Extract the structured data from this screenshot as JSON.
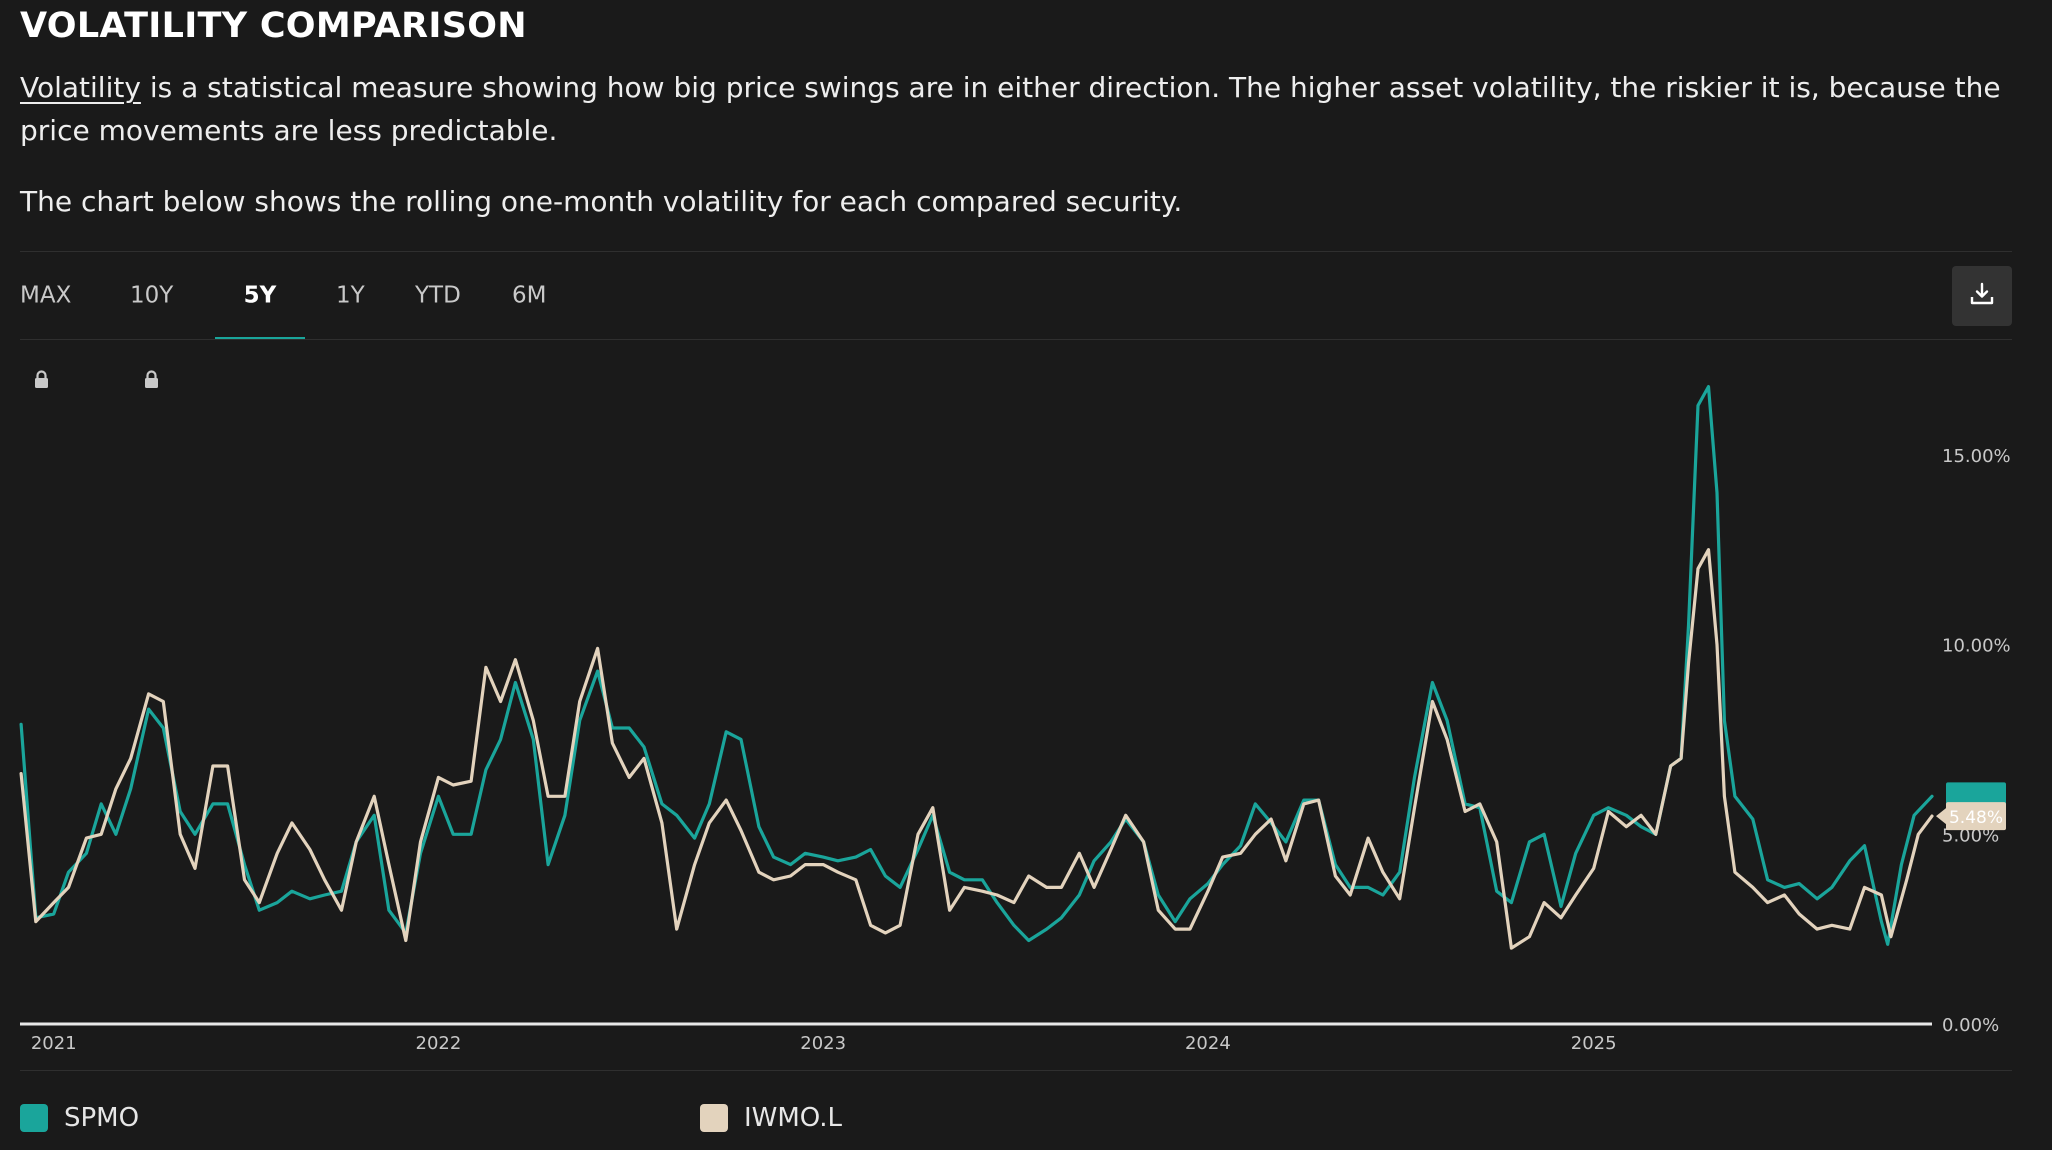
{
  "header": {
    "title": "VOLATILITY COMPARISON",
    "desc_link": "Volatility",
    "desc_rest": " is a statistical measure showing how big price swings are in either direction. The higher asset volatility, the riskier it is, because the price movements are less predictable.",
    "desc2": "The chart below shows the rolling one-month volatility for each compared security."
  },
  "tabs": [
    {
      "label": "MAX",
      "locked": true,
      "active": false
    },
    {
      "label": "10Y",
      "locked": true,
      "active": false
    },
    {
      "label": "5Y",
      "locked": false,
      "active": true
    },
    {
      "label": "1Y",
      "locked": false,
      "active": false
    },
    {
      "label": "YTD",
      "locked": false,
      "active": false
    },
    {
      "label": "6M",
      "locked": false,
      "active": false
    }
  ],
  "icons": {
    "lock": "lock-icon",
    "download": "download-icon"
  },
  "chart_data": {
    "type": "line",
    "xlim": [
      "2020-11-30",
      "2025-11-18"
    ],
    "x_ticks": [
      "2021-01-01",
      "2022-01-01",
      "2023-01-01",
      "2024-01-01",
      "2025-01-01"
    ],
    "x_tick_labels": [
      "2021",
      "2022",
      "2023",
      "2024",
      "2025"
    ],
    "ylim": [
      0,
      17.5
    ],
    "y_ticks": [
      0,
      5,
      10,
      15
    ],
    "y_tick_labels": [
      "0.00%",
      "5.00%",
      "10.00%",
      "15.00%"
    ],
    "current_value_label": "5.48%",
    "colors": {
      "SPMO": "#1aa59b",
      "IWMO.L": "#e3d3bd"
    },
    "series": [
      {
        "name": "SPMO",
        "color": "#1aa59b",
        "points": [
          [
            "2020-12-01",
            7.9
          ],
          [
            "2020-12-15",
            2.8
          ],
          [
            "2021-01-01",
            2.9
          ],
          [
            "2021-01-15",
            4.0
          ],
          [
            "2021-02-01",
            4.5
          ],
          [
            "2021-02-15",
            5.8
          ],
          [
            "2021-03-01",
            5.0
          ],
          [
            "2021-03-15",
            6.2
          ],
          [
            "2021-04-01",
            8.3
          ],
          [
            "2021-04-15",
            7.8
          ],
          [
            "2021-05-01",
            5.6
          ],
          [
            "2021-05-15",
            5.0
          ],
          [
            "2021-06-01",
            5.8
          ],
          [
            "2021-06-15",
            5.8
          ],
          [
            "2021-07-01",
            4.2
          ],
          [
            "2021-07-15",
            3.0
          ],
          [
            "2021-08-01",
            3.2
          ],
          [
            "2021-08-15",
            3.5
          ],
          [
            "2021-09-01",
            3.3
          ],
          [
            "2021-09-15",
            3.4
          ],
          [
            "2021-10-01",
            3.5
          ],
          [
            "2021-10-15",
            4.8
          ],
          [
            "2021-11-01",
            5.5
          ],
          [
            "2021-11-15",
            3.0
          ],
          [
            "2021-12-01",
            2.4
          ],
          [
            "2021-12-15",
            4.5
          ],
          [
            "2022-01-01",
            6.0
          ],
          [
            "2022-01-15",
            5.0
          ],
          [
            "2022-02-01",
            5.0
          ],
          [
            "2022-02-15",
            6.7
          ],
          [
            "2022-03-01",
            7.5
          ],
          [
            "2022-03-15",
            9.0
          ],
          [
            "2022-04-01",
            7.5
          ],
          [
            "2022-04-15",
            4.2
          ],
          [
            "2022-05-01",
            5.5
          ],
          [
            "2022-05-15",
            8.0
          ],
          [
            "2022-06-01",
            9.3
          ],
          [
            "2022-06-15",
            7.8
          ],
          [
            "2022-07-01",
            7.8
          ],
          [
            "2022-07-15",
            7.3
          ],
          [
            "2022-08-01",
            5.8
          ],
          [
            "2022-08-15",
            5.5
          ],
          [
            "2022-09-01",
            4.9
          ],
          [
            "2022-09-15",
            5.8
          ],
          [
            "2022-10-01",
            7.7
          ],
          [
            "2022-10-15",
            7.5
          ],
          [
            "2022-11-01",
            5.2
          ],
          [
            "2022-11-15",
            4.4
          ],
          [
            "2022-12-01",
            4.2
          ],
          [
            "2022-12-15",
            4.5
          ],
          [
            "2023-01-01",
            4.4
          ],
          [
            "2023-01-15",
            4.3
          ],
          [
            "2023-02-01",
            4.4
          ],
          [
            "2023-02-15",
            4.6
          ],
          [
            "2023-03-01",
            3.9
          ],
          [
            "2023-03-15",
            3.6
          ],
          [
            "2023-04-01",
            4.6
          ],
          [
            "2023-04-15",
            5.5
          ],
          [
            "2023-05-01",
            4.0
          ],
          [
            "2023-05-15",
            3.8
          ],
          [
            "2023-06-01",
            3.8
          ],
          [
            "2023-06-15",
            3.2
          ],
          [
            "2023-07-01",
            2.6
          ],
          [
            "2023-07-15",
            2.2
          ],
          [
            "2023-08-01",
            2.5
          ],
          [
            "2023-08-15",
            2.8
          ],
          [
            "2023-09-01",
            3.4
          ],
          [
            "2023-09-15",
            4.3
          ],
          [
            "2023-10-01",
            4.8
          ],
          [
            "2023-10-15",
            5.4
          ],
          [
            "2023-11-01",
            4.8
          ],
          [
            "2023-11-15",
            3.4
          ],
          [
            "2023-12-01",
            2.7
          ],
          [
            "2023-12-15",
            3.3
          ],
          [
            "2024-01-01",
            3.7
          ],
          [
            "2024-01-15",
            4.2
          ],
          [
            "2024-02-01",
            4.7
          ],
          [
            "2024-02-15",
            5.8
          ],
          [
            "2024-03-01",
            5.3
          ],
          [
            "2024-03-15",
            4.8
          ],
          [
            "2024-04-01",
            5.9
          ],
          [
            "2024-04-15",
            5.9
          ],
          [
            "2024-05-01",
            4.2
          ],
          [
            "2024-05-15",
            3.6
          ],
          [
            "2024-06-01",
            3.6
          ],
          [
            "2024-06-15",
            3.4
          ],
          [
            "2024-07-01",
            4.0
          ],
          [
            "2024-07-15",
            6.5
          ],
          [
            "2024-08-01",
            9.0
          ],
          [
            "2024-08-15",
            8.0
          ],
          [
            "2024-09-01",
            5.8
          ],
          [
            "2024-09-15",
            5.7
          ],
          [
            "2024-10-01",
            3.5
          ],
          [
            "2024-10-15",
            3.2
          ],
          [
            "2024-11-01",
            4.8
          ],
          [
            "2024-11-15",
            5.0
          ],
          [
            "2024-12-01",
            3.1
          ],
          [
            "2024-12-15",
            4.5
          ],
          [
            "2025-01-01",
            5.5
          ],
          [
            "2025-01-15",
            5.7
          ],
          [
            "2025-02-01",
            5.5
          ],
          [
            "2025-02-15",
            5.2
          ],
          [
            "2025-03-01",
            5.0
          ],
          [
            "2025-03-15",
            6.8
          ],
          [
            "2025-03-25",
            7.0
          ],
          [
            "2025-04-01",
            10.5
          ],
          [
            "2025-04-10",
            16.3
          ],
          [
            "2025-04-20",
            16.8
          ],
          [
            "2025-04-28",
            14.0
          ],
          [
            "2025-05-05",
            8.0
          ],
          [
            "2025-05-15",
            6.0
          ],
          [
            "2025-06-01",
            5.4
          ],
          [
            "2025-06-15",
            3.8
          ],
          [
            "2025-07-01",
            3.6
          ],
          [
            "2025-07-15",
            3.7
          ],
          [
            "2025-08-01",
            3.3
          ],
          [
            "2025-08-15",
            3.6
          ],
          [
            "2025-09-01",
            4.3
          ],
          [
            "2025-09-15",
            4.7
          ],
          [
            "2025-10-01",
            2.7
          ],
          [
            "2025-10-07",
            2.1
          ],
          [
            "2025-10-20",
            4.2
          ],
          [
            "2025-11-01",
            5.5
          ],
          [
            "2025-11-18",
            6.0
          ]
        ]
      },
      {
        "name": "IWMO.L",
        "color": "#e3d3bd",
        "points": [
          [
            "2020-12-01",
            6.6
          ],
          [
            "2020-12-15",
            2.7
          ],
          [
            "2021-01-01",
            3.2
          ],
          [
            "2021-01-15",
            3.6
          ],
          [
            "2021-02-01",
            4.9
          ],
          [
            "2021-02-15",
            5.0
          ],
          [
            "2021-03-01",
            6.2
          ],
          [
            "2021-03-15",
            7.0
          ],
          [
            "2021-04-01",
            8.7
          ],
          [
            "2021-04-15",
            8.5
          ],
          [
            "2021-05-01",
            5.0
          ],
          [
            "2021-05-15",
            4.1
          ],
          [
            "2021-06-01",
            6.8
          ],
          [
            "2021-06-15",
            6.8
          ],
          [
            "2021-07-01",
            3.8
          ],
          [
            "2021-07-15",
            3.2
          ],
          [
            "2021-08-01",
            4.5
          ],
          [
            "2021-08-15",
            5.3
          ],
          [
            "2021-09-01",
            4.6
          ],
          [
            "2021-09-15",
            3.8
          ],
          [
            "2021-10-01",
            3.0
          ],
          [
            "2021-10-15",
            4.8
          ],
          [
            "2021-11-01",
            6.0
          ],
          [
            "2021-11-15",
            4.2
          ],
          [
            "2021-12-01",
            2.2
          ],
          [
            "2021-12-15",
            4.8
          ],
          [
            "2022-01-01",
            6.5
          ],
          [
            "2022-01-15",
            6.3
          ],
          [
            "2022-02-01",
            6.4
          ],
          [
            "2022-02-15",
            9.4
          ],
          [
            "2022-03-01",
            8.5
          ],
          [
            "2022-03-15",
            9.6
          ],
          [
            "2022-04-01",
            8.0
          ],
          [
            "2022-04-15",
            6.0
          ],
          [
            "2022-05-01",
            6.0
          ],
          [
            "2022-05-15",
            8.5
          ],
          [
            "2022-06-01",
            9.9
          ],
          [
            "2022-06-15",
            7.4
          ],
          [
            "2022-07-01",
            6.5
          ],
          [
            "2022-07-15",
            7.0
          ],
          [
            "2022-08-01",
            5.3
          ],
          [
            "2022-08-15",
            2.5
          ],
          [
            "2022-09-01",
            4.2
          ],
          [
            "2022-09-15",
            5.3
          ],
          [
            "2022-10-01",
            5.9
          ],
          [
            "2022-10-15",
            5.1
          ],
          [
            "2022-11-01",
            4.0
          ],
          [
            "2022-11-15",
            3.8
          ],
          [
            "2022-12-01",
            3.9
          ],
          [
            "2022-12-15",
            4.2
          ],
          [
            "2023-01-01",
            4.2
          ],
          [
            "2023-01-15",
            4.0
          ],
          [
            "2023-02-01",
            3.8
          ],
          [
            "2023-02-15",
            2.6
          ],
          [
            "2023-03-01",
            2.4
          ],
          [
            "2023-03-15",
            2.6
          ],
          [
            "2023-04-01",
            5.0
          ],
          [
            "2023-04-15",
            5.7
          ],
          [
            "2023-05-01",
            3.0
          ],
          [
            "2023-05-15",
            3.6
          ],
          [
            "2023-06-01",
            3.5
          ],
          [
            "2023-06-15",
            3.4
          ],
          [
            "2023-07-01",
            3.2
          ],
          [
            "2023-07-15",
            3.9
          ],
          [
            "2023-08-01",
            3.6
          ],
          [
            "2023-08-15",
            3.6
          ],
          [
            "2023-09-01",
            4.5
          ],
          [
            "2023-09-15",
            3.6
          ],
          [
            "2023-10-01",
            4.6
          ],
          [
            "2023-10-15",
            5.5
          ],
          [
            "2023-11-01",
            4.8
          ],
          [
            "2023-11-15",
            3.0
          ],
          [
            "2023-12-01",
            2.5
          ],
          [
            "2023-12-15",
            2.5
          ],
          [
            "2024-01-01",
            3.5
          ],
          [
            "2024-01-15",
            4.4
          ],
          [
            "2024-02-01",
            4.5
          ],
          [
            "2024-02-15",
            5.0
          ],
          [
            "2024-03-01",
            5.4
          ],
          [
            "2024-03-15",
            4.3
          ],
          [
            "2024-04-01",
            5.8
          ],
          [
            "2024-04-15",
            5.9
          ],
          [
            "2024-05-01",
            3.9
          ],
          [
            "2024-05-15",
            3.4
          ],
          [
            "2024-06-01",
            4.9
          ],
          [
            "2024-06-15",
            4.0
          ],
          [
            "2024-07-01",
            3.3
          ],
          [
            "2024-07-15",
            5.7
          ],
          [
            "2024-08-01",
            8.5
          ],
          [
            "2024-08-15",
            7.5
          ],
          [
            "2024-09-01",
            5.6
          ],
          [
            "2024-09-15",
            5.8
          ],
          [
            "2024-10-01",
            4.8
          ],
          [
            "2024-10-15",
            2.0
          ],
          [
            "2024-11-01",
            2.3
          ],
          [
            "2024-11-15",
            3.2
          ],
          [
            "2024-12-01",
            2.8
          ],
          [
            "2024-12-15",
            3.4
          ],
          [
            "2025-01-01",
            4.1
          ],
          [
            "2025-01-15",
            5.6
          ],
          [
            "2025-02-01",
            5.2
          ],
          [
            "2025-02-15",
            5.5
          ],
          [
            "2025-03-01",
            5.0
          ],
          [
            "2025-03-15",
            6.8
          ],
          [
            "2025-03-25",
            7.0
          ],
          [
            "2025-04-01",
            9.5
          ],
          [
            "2025-04-10",
            12.0
          ],
          [
            "2025-04-20",
            12.5
          ],
          [
            "2025-04-28",
            10.0
          ],
          [
            "2025-05-05",
            6.0
          ],
          [
            "2025-05-15",
            4.0
          ],
          [
            "2025-06-01",
            3.6
          ],
          [
            "2025-06-15",
            3.2
          ],
          [
            "2025-07-01",
            3.4
          ],
          [
            "2025-07-15",
            2.9
          ],
          [
            "2025-08-01",
            2.5
          ],
          [
            "2025-08-15",
            2.6
          ],
          [
            "2025-09-01",
            2.5
          ],
          [
            "2025-09-15",
            3.6
          ],
          [
            "2025-10-01",
            3.4
          ],
          [
            "2025-10-10",
            2.3
          ],
          [
            "2025-10-25",
            3.8
          ],
          [
            "2025-11-05",
            5.0
          ],
          [
            "2025-11-18",
            5.48
          ]
        ]
      }
    ]
  },
  "legend": [
    {
      "name": "SPMO",
      "color": "#1aa59b"
    },
    {
      "name": "IWMO.L",
      "color": "#e3d3bd"
    }
  ]
}
